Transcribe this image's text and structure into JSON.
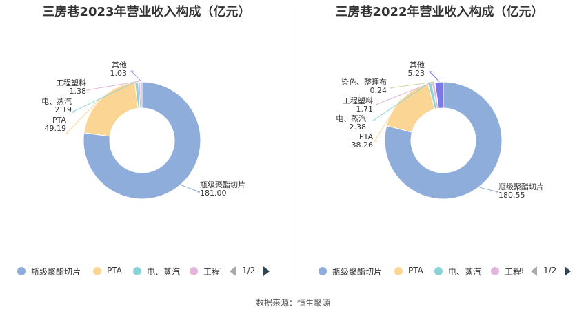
{
  "chart_data": [
    {
      "type": "pie",
      "title": "三房巷2023年营业收入构成（亿元）",
      "categories": [
        "瓶级聚酯切片",
        "PTA",
        "电、蒸汽",
        "工程塑料",
        "其他"
      ],
      "values": [
        181.0,
        49.19,
        2.19,
        1.38,
        1.03
      ],
      "value_labels": [
        "181.00",
        "49.19",
        "2.19",
        "1.38",
        "1.03"
      ],
      "colors": [
        "#8eadda",
        "#fbd593",
        "#8ad4d8",
        "#e5b6db",
        "#a6a0d9"
      ],
      "legend": [
        "瓶级聚酯切片",
        "PTA",
        "电、蒸汽",
        "工程塑料"
      ],
      "legend_page": "1/2",
      "legend_position": "bottom"
    },
    {
      "type": "pie",
      "title": "三房巷2022年营业收入构成（亿元）",
      "categories": [
        "瓶级聚酯切片",
        "PTA",
        "电、蒸汽",
        "工程塑料",
        "染色、整理布",
        "其他"
      ],
      "values": [
        180.55,
        38.26,
        2.38,
        1.71,
        0.24,
        5.23
      ],
      "value_labels": [
        "180.55",
        "38.26",
        "2.38",
        "1.71",
        "0.24",
        "5.23"
      ],
      "colors": [
        "#8eadda",
        "#fbd593",
        "#8ad4d8",
        "#e5b6db",
        "#c9d8a8",
        "#7b78e8"
      ],
      "legend": [
        "瓶级聚酯切片",
        "PTA",
        "电、蒸汽",
        "工程塑料"
      ],
      "legend_page": "1/2",
      "legend_position": "bottom"
    }
  ],
  "source": "数据来源：恒生聚源"
}
